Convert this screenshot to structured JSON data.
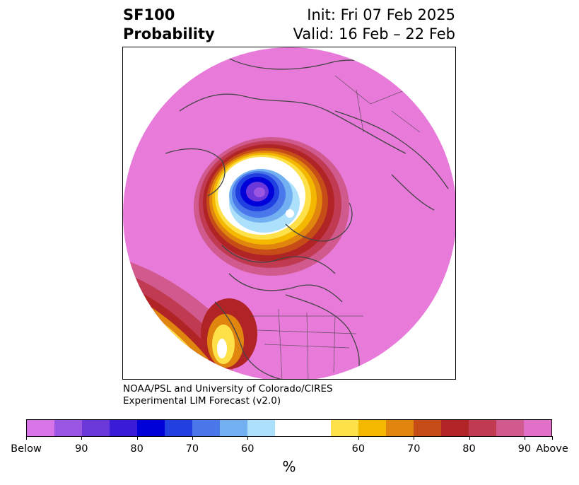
{
  "header": {
    "product": "SF100",
    "field": "Probability",
    "init": "Init: Fri 07 Feb 2025",
    "valid": "Valid: 16 Feb – 22 Feb"
  },
  "credit": {
    "line1": "NOAA/PSL and University of Colorado/CIRES",
    "line2": "Experimental LIM Forecast (v2.0)"
  },
  "colorbar": {
    "unit": "%",
    "tick_labels": [
      "Below",
      "90",
      "80",
      "70",
      "60",
      "60",
      "70",
      "80",
      "90",
      "Above"
    ],
    "colors": [
      "#d874e8",
      "#9a56e0",
      "#6a38d8",
      "#3a1cd6",
      "#0000d8",
      "#2040e0",
      "#4a78ea",
      "#72b0f2",
      "#ade0fb",
      "#ffffff",
      "#fee048",
      "#f4b800",
      "#e0860e",
      "#c64c18",
      "#b12426",
      "#c03a52",
      "#d05a8e",
      "#e070c8"
    ]
  },
  "map": {
    "projection": "north-polar-stereographic",
    "background_color": "#e87ada",
    "land_outline_color": "#444444"
  }
}
